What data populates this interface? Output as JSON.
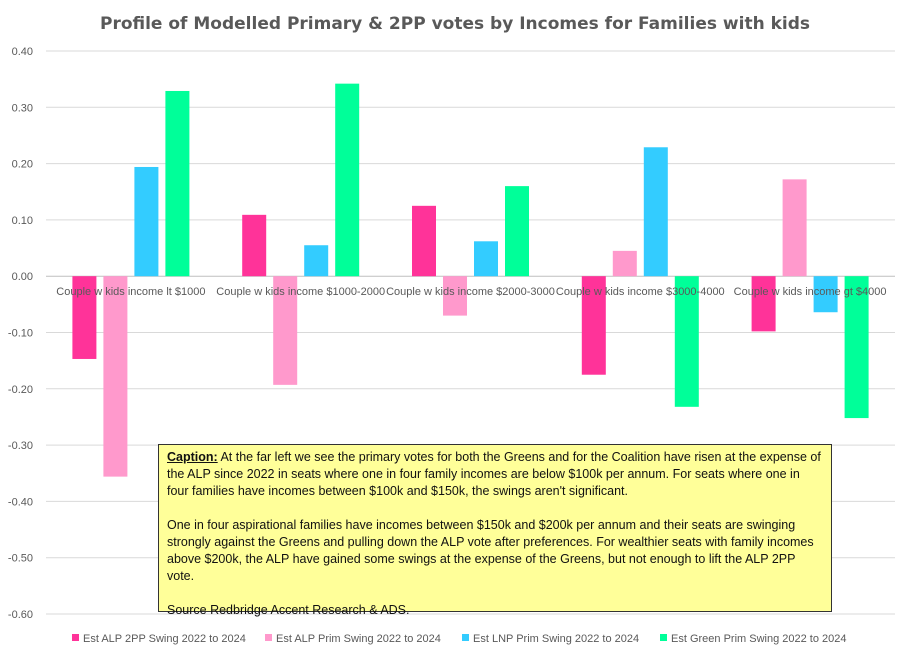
{
  "chart_data": {
    "type": "bar",
    "title": "Profile of Modelled Primary & 2PP votes by Incomes for Families with kids",
    "categories": [
      "Couple w kids income lt $1000",
      "Couple w kids income $1000-2000",
      "Couple w kids income $2000-3000",
      "Couple w kids income $3000-4000",
      "Couple w kids income gt $4000"
    ],
    "series": [
      {
        "name": "Est ALP 2PP Swing 2022 to 2024",
        "color": "#ff3399",
        "values": [
          -0.147,
          0.109,
          0.125,
          -0.175,
          -0.098
        ]
      },
      {
        "name": "Est ALP Prim Swing 2022 to 2024",
        "color": "#ff99cc",
        "values": [
          -0.356,
          -0.193,
          -0.07,
          0.045,
          0.172
        ]
      },
      {
        "name": "Est LNP Prim Swing 2022 to 2024",
        "color": "#33ccff",
        "values": [
          0.194,
          0.055,
          0.062,
          0.229,
          -0.064
        ]
      },
      {
        "name": "Est Green Prim Swing 2022 to 2024",
        "color": "#00ff99",
        "values": [
          0.329,
          0.342,
          0.16,
          -0.232,
          -0.252
        ]
      }
    ],
    "ylim": [
      -0.6,
      0.4
    ],
    "yticks": [
      "0.40",
      "0.30",
      "0.20",
      "0.10",
      "0.00",
      "-0.10",
      "-0.20",
      "-0.30",
      "-0.40",
      "-0.50",
      "-0.60"
    ],
    "ytick_values": [
      0.4,
      0.3,
      0.2,
      0.1,
      0.0,
      -0.1,
      -0.2,
      -0.3,
      -0.4,
      -0.5,
      -0.6
    ],
    "grid": true,
    "legend_position": "bottom"
  },
  "caption": {
    "label": "Caption:",
    "para1": " At the far left we see the primary votes for both the Greens and for the Coalition have risen at the expense of the ALP since 2022 in seats where one in four family incomes are below $100k per annum. For seats where one in four families have incomes between $100k and $150k, the swings aren't significant.",
    "para2": "One in four aspirational families have incomes between $150k and $200k per annum and their seats are swinging strongly against the Greens and pulling down the ALP vote after preferences. For wealthier seats with family incomes above $200k, the ALP have gained some swings at the expense of the Greens, but not enough to lift the ALP 2PP vote.",
    "source": "Source Redbridge Accent Research & ADS."
  }
}
